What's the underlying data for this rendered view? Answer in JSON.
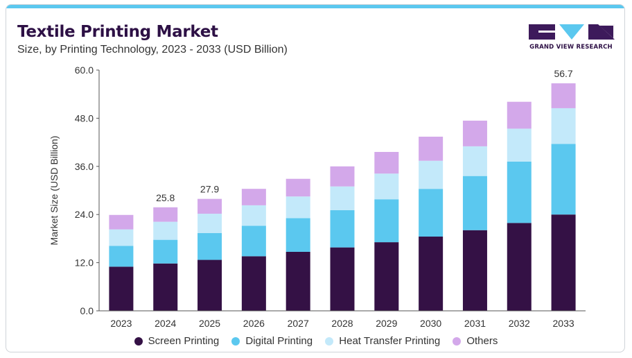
{
  "header": {
    "title": "Textile Printing Market",
    "subtitle": "Size, by Printing Technology, 2023 - 2033 (USD Billion)"
  },
  "logo": {
    "text": "GRAND VIEW RESEARCH",
    "colors": {
      "dark": "#3d1a5b",
      "light": "#5bc8ef"
    }
  },
  "chart_data": {
    "type": "bar",
    "stacked": true,
    "categories": [
      "2023",
      "2024",
      "2025",
      "2026",
      "2027",
      "2028",
      "2029",
      "2030",
      "2031",
      "2032",
      "2033"
    ],
    "series": [
      {
        "name": "Screen Printing",
        "color": "#341145",
        "values": [
          11.0,
          11.8,
          12.7,
          13.6,
          14.7,
          15.8,
          17.1,
          18.5,
          20.1,
          21.9,
          24.0
        ]
      },
      {
        "name": "Digital Printing",
        "color": "#5bc8ef",
        "values": [
          5.2,
          5.9,
          6.7,
          7.6,
          8.4,
          9.3,
          10.7,
          11.9,
          13.5,
          15.3,
          17.6
        ]
      },
      {
        "name": "Heat Transfer Printing",
        "color": "#c3e9fa",
        "values": [
          4.1,
          4.5,
          4.8,
          5.1,
          5.4,
          5.9,
          6.4,
          7.0,
          7.4,
          8.2,
          8.9
        ]
      },
      {
        "name": "Others",
        "color": "#d3a8ea",
        "values": [
          3.6,
          3.6,
          3.7,
          4.1,
          4.4,
          5.0,
          5.4,
          6.0,
          6.4,
          6.7,
          6.2
        ]
      }
    ],
    "value_labels": [
      {
        "category": "2024",
        "text": "25.8"
      },
      {
        "category": "2025",
        "text": "27.9"
      },
      {
        "category": "2033",
        "text": "56.7"
      }
    ],
    "ylabel": "Market Size (USD Billion)",
    "xlabel": "",
    "ylim": [
      0,
      60
    ],
    "yticks": [
      "0.0",
      "12.0",
      "24.0",
      "36.0",
      "48.0",
      "60.0"
    ],
    "ytick_values": [
      0,
      12,
      24,
      36,
      48,
      60
    ],
    "grid": false,
    "legend_position": "bottom"
  }
}
